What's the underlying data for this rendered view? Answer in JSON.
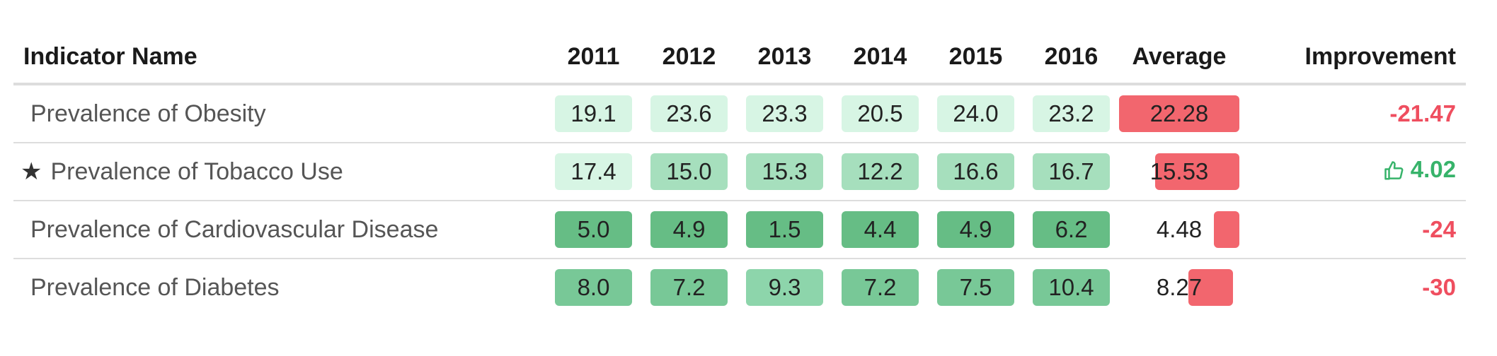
{
  "headers": {
    "name": "Indicator Name",
    "years": [
      "2011",
      "2012",
      "2013",
      "2014",
      "2015",
      "2016"
    ],
    "average": "Average",
    "improvement": "Improvement"
  },
  "colors": {
    "chip_lightest": "#d7f5e4",
    "chip_light": "#a6dfbd",
    "chip_mid": "#8dd5ab",
    "chip_strong": "#78c897",
    "chip_darkest": "#66bd85",
    "negative_bar": "#f2666e",
    "negative_text": "#ef4e5f",
    "positive_text": "#37b36a"
  },
  "rows": [
    {
      "name": "Prevalence of Obesity",
      "starred": false,
      "values": [
        "19.1",
        "23.6",
        "23.3",
        "20.5",
        "24.0",
        "23.2"
      ],
      "shades": [
        "chip_lightest",
        "chip_lightest",
        "chip_lightest",
        "chip_lightest",
        "chip_lightest",
        "chip_lightest"
      ],
      "average": "22.28",
      "average_fill": 1.0,
      "improvement": "-21.47",
      "improvement_positive": false
    },
    {
      "name": "Prevalence of Tobacco Use",
      "starred": true,
      "values": [
        "17.4",
        "15.0",
        "15.3",
        "12.2",
        "16.6",
        "16.7"
      ],
      "shades": [
        "chip_lightest",
        "chip_light",
        "chip_light",
        "chip_light",
        "chip_light",
        "chip_light"
      ],
      "average": "15.53",
      "average_fill": 0.7,
      "improvement": "4.02",
      "improvement_positive": true
    },
    {
      "name": "Prevalence of Cardiovascular Disease",
      "starred": false,
      "values": [
        "5.0",
        "4.9",
        "1.5",
        "4.4",
        "4.9",
        "6.2"
      ],
      "shades": [
        "chip_darkest",
        "chip_darkest",
        "chip_darkest",
        "chip_darkest",
        "chip_darkest",
        "chip_darkest"
      ],
      "average": "4.48",
      "average_fill": 0.2,
      "improvement": "-24",
      "improvement_positive": false
    },
    {
      "name": "Prevalence of Diabetes",
      "starred": false,
      "values": [
        "8.0",
        "7.2",
        "9.3",
        "7.2",
        "7.5",
        "10.4"
      ],
      "shades": [
        "chip_strong",
        "chip_strong",
        "chip_mid",
        "chip_strong",
        "chip_strong",
        "chip_strong"
      ],
      "average": "8.27",
      "average_fill": 0.37,
      "improvement": "-30",
      "improvement_positive": false
    }
  ]
}
